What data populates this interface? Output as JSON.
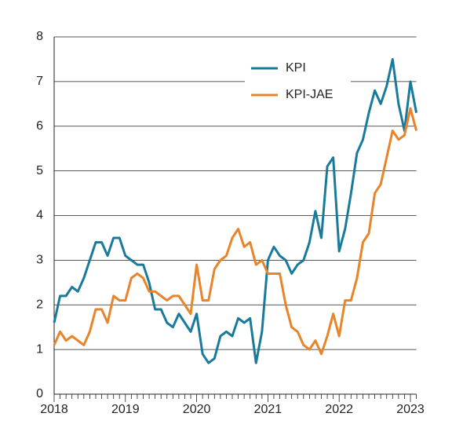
{
  "chart_data": {
    "type": "line",
    "categories": [
      "2018",
      null,
      null,
      null,
      null,
      null,
      null,
      null,
      null,
      null,
      null,
      null,
      "2019",
      null,
      null,
      null,
      null,
      null,
      null,
      null,
      null,
      null,
      null,
      null,
      "2020",
      null,
      null,
      null,
      null,
      null,
      null,
      null,
      null,
      null,
      null,
      null,
      "2021",
      null,
      null,
      null,
      null,
      null,
      null,
      null,
      null,
      null,
      null,
      null,
      "2022",
      null,
      null,
      null,
      null,
      null,
      null,
      null,
      null,
      null,
      null,
      null,
      "2023",
      null
    ],
    "series": [
      {
        "name": "KPI",
        "color": "#1a7a9c",
        "values": [
          1.6,
          2.2,
          2.2,
          2.4,
          2.3,
          2.6,
          3.0,
          3.4,
          3.4,
          3.1,
          3.5,
          3.5,
          3.1,
          3.0,
          2.9,
          2.9,
          2.5,
          1.9,
          1.9,
          1.6,
          1.5,
          1.8,
          1.6,
          1.4,
          1.8,
          0.9,
          0.7,
          0.8,
          1.3,
          1.4,
          1.3,
          1.7,
          1.6,
          1.7,
          0.7,
          1.4,
          3.0,
          3.3,
          3.1,
          3.0,
          2.7,
          2.9,
          3.0,
          3.4,
          4.1,
          3.5,
          5.1,
          5.3,
          3.2,
          3.7,
          4.5,
          5.4,
          5.7,
          6.3,
          6.8,
          6.5,
          6.9,
          7.5,
          6.5,
          5.9,
          7.0,
          6.3
        ]
      },
      {
        "name": "KPI-JAE",
        "color": "#e8842a",
        "values": [
          1.1,
          1.4,
          1.2,
          1.3,
          1.2,
          1.1,
          1.4,
          1.9,
          1.9,
          1.6,
          2.2,
          2.1,
          2.1,
          2.6,
          2.7,
          2.6,
          2.3,
          2.3,
          2.2,
          2.1,
          2.2,
          2.2,
          2.0,
          1.8,
          2.9,
          2.1,
          2.1,
          2.8,
          3.0,
          3.1,
          3.5,
          3.7,
          3.3,
          3.4,
          2.9,
          3.0,
          2.7,
          2.7,
          2.7,
          2.0,
          1.5,
          1.4,
          1.1,
          1.0,
          1.2,
          0.9,
          1.3,
          1.8,
          1.3,
          2.1,
          2.1,
          2.6,
          3.4,
          3.6,
          4.5,
          4.7,
          5.3,
          5.9,
          5.7,
          5.8,
          6.4,
          5.9
        ]
      }
    ],
    "ylim": [
      0,
      8
    ],
    "yticks": [
      0,
      1,
      2,
      3,
      4,
      5,
      6,
      7,
      8
    ],
    "grid": true,
    "legend": "upper center"
  }
}
